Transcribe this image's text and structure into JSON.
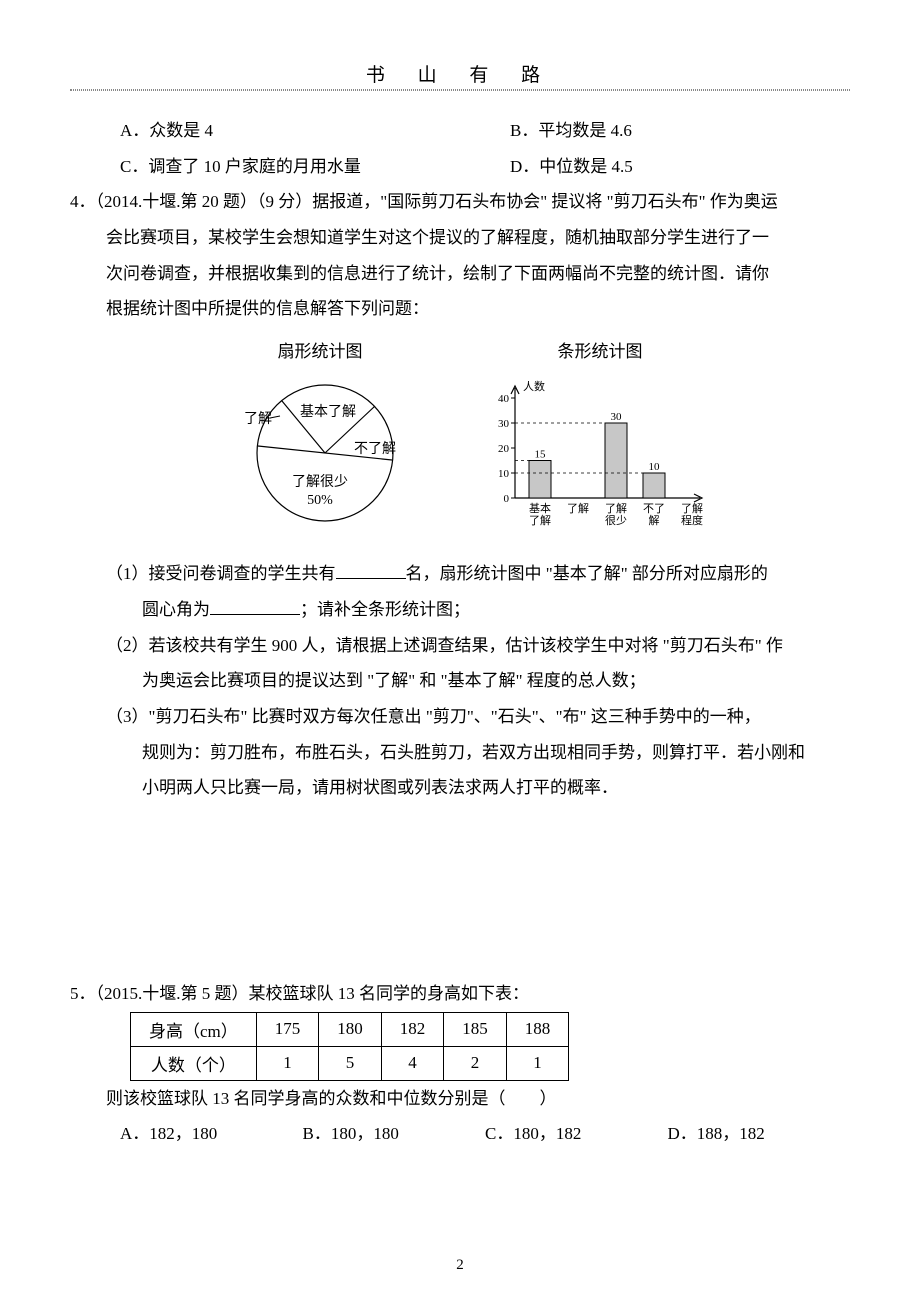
{
  "header": {
    "title": "书 山 有 路"
  },
  "q_options": {
    "a": "A．众数是 4",
    "b": "B．平均数是 4.6",
    "c": "C．调查了 10 户家庭的月用水量",
    "d": "D．中位数是 4.5"
  },
  "q4": {
    "stem1": "4．（2014.十堰.第 20 题）（9 分）据报道，\"国际剪刀石头布协会\" 提议将 \"剪刀石头布\" 作为奥运",
    "stem2": "会比赛项目，某校学生会想知道学生对这个提议的了解程度，随机抽取部分学生进行了一",
    "stem3": "次问卷调查，并根据收集到的信息进行了统计，绘制了下面两幅尚不完整的统计图．请你",
    "stem4": "根据统计图中所提供的信息解答下列问题：",
    "pie": {
      "title": "扇形统计图",
      "labels": {
        "basic": "基本了解",
        "know": "了解",
        "notknow": "不了解",
        "little": "了解很少",
        "percent": "50%"
      },
      "stroke": "#000000",
      "fill": "#ffffff",
      "fontsize": 13
    },
    "bar": {
      "title": "条形统计图",
      "yaxis_label": "人数",
      "ymax": 40,
      "ystep": 10,
      "yticks": [
        "0",
        "10",
        "20",
        "30",
        "40"
      ],
      "categories": [
        "基本\n了解",
        "了解",
        "了解\n很少",
        "不了\n解",
        "了解\n程度"
      ],
      "values": [
        15,
        null,
        30,
        10
      ],
      "value_labels": [
        "15",
        "",
        "30",
        "10"
      ],
      "bar_fill": "#c7c7c7",
      "bar_stroke": "#000000",
      "axis_color": "#000000",
      "fontsize": 11
    },
    "sub1a": "（1）接受问卷调查的学生共有",
    "sub1b": "名，扇形统计图中 \"基本了解\" 部分所对应扇形的",
    "sub1c": "圆心角为",
    "sub1d": "；请补全条形统计图；",
    "sub2a": "（2）若该校共有学生 900 人，请根据上述调查结果，估计该校学生中对将 \"剪刀石头布\" 作",
    "sub2b": "为奥运会比赛项目的提议达到 \"了解\" 和 \"基本了解\" 程度的总人数；",
    "sub3a": "（3）\"剪刀石头布\" 比赛时双方每次任意出 \"剪刀\"、\"石头\"、\"布\" 这三种手势中的一种，",
    "sub3b": "规则为：剪刀胜布，布胜石头，石头胜剪刀，若双方出现相同手势，则算打平．若小刚和",
    "sub3c": "小明两人只比赛一局，请用树状图或列表法求两人打平的概率．"
  },
  "q5": {
    "stem": "5．（2015.十堰.第 5 题）某校篮球队 13 名同学的身高如下表：",
    "table": {
      "row1_header": "身高（cm）",
      "row2_header": "人数（个）",
      "heights": [
        "175",
        "180",
        "182",
        "185",
        "188"
      ],
      "counts": [
        "1",
        "5",
        "4",
        "2",
        "1"
      ]
    },
    "post": "则该校篮球队 13 名同学身高的众数和中位数分别是（　　）",
    "options": {
      "a": "A．182，180",
      "b": "B．180，180",
      "c": "C．180，182",
      "d": "D．188，182"
    }
  },
  "page_number": "2"
}
